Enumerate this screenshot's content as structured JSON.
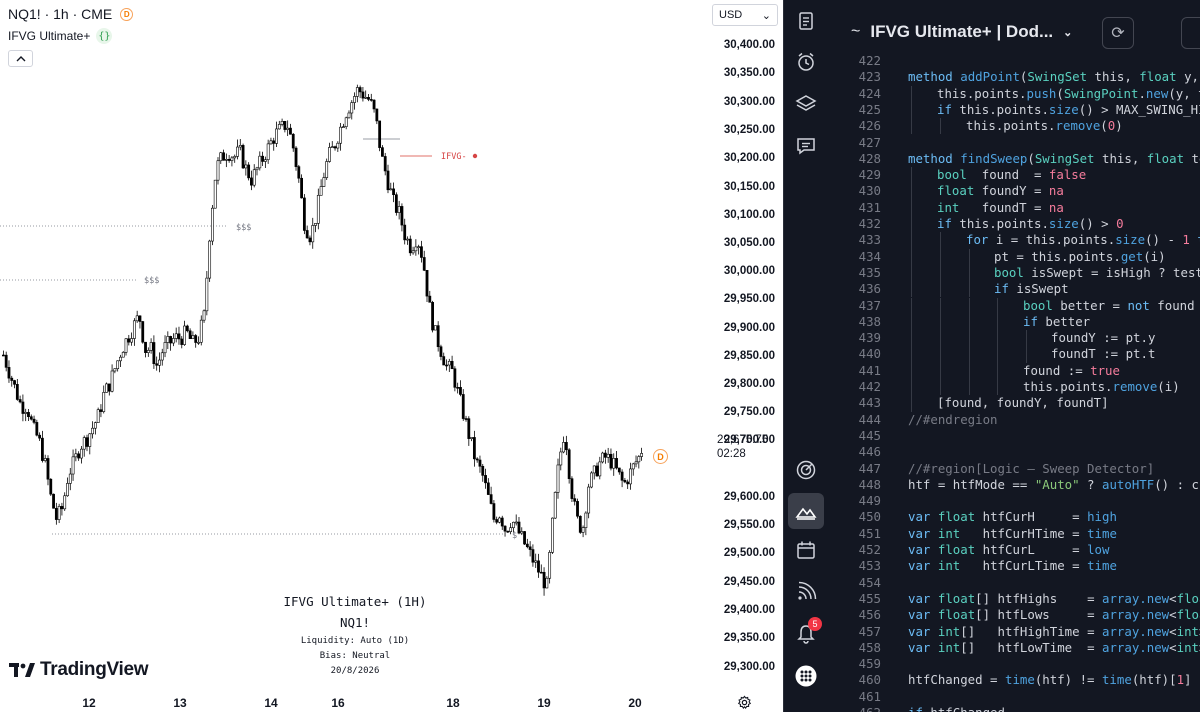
{
  "chart": {
    "symbol": "NQ1! · 1h · CME",
    "symbol_badge": "D",
    "indicator": "IFVG Ultimate+",
    "indicator_icon": "{}",
    "collapse_icon": "chevron-up-icon",
    "currency": "USD",
    "currency_chevron": "⌄",
    "last_price": "29,675.75",
    "countdown": "02:28",
    "d_marker": "D",
    "ifvg_label": "IFVG-",
    "liquidity_labels": [
      "$$$",
      "$$$",
      "$"
    ],
    "info": {
      "title": "IFVG Ultimate+ (1H)",
      "symbol": "NQ1!",
      "liquidity": "Liquidity: Auto (1D)",
      "bias": "Bias: Neutral",
      "date": "20/8/2026"
    },
    "logo_text": "TradingView",
    "bg_color": "#ffffff",
    "candle_color": "#000000"
  },
  "chart_data": {
    "type": "candlestick",
    "y_ticks": [
      "30,400.00",
      "30,350.00",
      "30,300.00",
      "30,250.00",
      "30,200.00",
      "30,150.00",
      "30,100.00",
      "30,050.00",
      "30,000.00",
      "29,950.00",
      "29,900.00",
      "29,850.00",
      "29,800.00",
      "29,750.00",
      "29,700.00",
      "29,600.00",
      "29,550.00",
      "29,500.00",
      "29,450.00",
      "29,400.00",
      "29,350.00",
      "29,300.00"
    ],
    "x_ticks": [
      "12",
      "13",
      "14",
      "16",
      "18",
      "19",
      "20"
    ],
    "ylim": [
      29280,
      30420
    ],
    "close_path": [
      29850,
      29820,
      29790,
      29760,
      29760,
      29720,
      29700,
      29660,
      29600,
      29560,
      29580,
      29640,
      29660,
      29690,
      29700,
      29720,
      29740,
      29780,
      29800,
      29830,
      29860,
      29880,
      29900,
      29920,
      29860,
      29860,
      29830,
      29860,
      29870,
      29880,
      29880,
      29890,
      29870,
      29880,
      29920,
      30080,
      30180,
      30200,
      30210,
      30200,
      30210,
      30180,
      30160,
      30180,
      30200,
      30220,
      30240,
      30250,
      30260,
      30220,
      30160,
      30080,
      30060,
      30100,
      30160,
      30200,
      30220,
      30250,
      30280,
      30300,
      30320,
      30310,
      30300,
      30270,
      30200,
      30160,
      30120,
      30100,
      30060,
      30040,
      30060,
      30020,
      29940,
      29890,
      29860,
      29830,
      29820,
      29780,
      29740,
      29700,
      29660,
      29640,
      29600,
      29560,
      29570,
      29540,
      29560,
      29540,
      29520,
      29500,
      29480,
      29460,
      29440,
      29560,
      29660,
      29720,
      29620,
      29560,
      29540,
      29620,
      29640,
      29660,
      29670,
      29660,
      29640,
      29620,
      29640,
      29660,
      29676
    ]
  },
  "sidebar": {
    "items": [
      {
        "icon": "notes-icon"
      },
      {
        "icon": "alarm-clock-icon"
      },
      {
        "icon": "layers-icon"
      },
      {
        "icon": "chat-icon"
      },
      {
        "icon": "target-icon"
      },
      {
        "icon": "pine-editor-icon"
      },
      {
        "icon": "calendar-icon"
      },
      {
        "icon": "broadcast-icon"
      },
      {
        "icon": "bell-icon",
        "badge": "5"
      },
      {
        "icon": "apps-grid-icon"
      }
    ]
  },
  "editor": {
    "title": "IFVG Ultimate+ | Dod...",
    "squiggle": "~",
    "chevron": "⌄",
    "refresh_icon": "⟳",
    "lines": [
      {
        "n": "422",
        "i": 0,
        "h": ""
      },
      {
        "n": "423",
        "i": 0,
        "h": "<span class=\"k\">method</span> <span class=\"f\">addPoint</span>(<span class=\"t\">SwingSet</span> this, <span class=\"t\">float</span> y, i"
      },
      {
        "n": "424",
        "i": 1,
        "h": "this.points.<span class=\"f\">push</span>(<span class=\"t\">SwingPoint</span>.<span class=\"f\">new</span>(y, t)"
      },
      {
        "n": "425",
        "i": 1,
        "h": "<span class=\"k\">if</span> this.points.<span class=\"f\">size</span>() > MAX_SWING_HIS"
      },
      {
        "n": "426",
        "i": 2,
        "h": "this.points.<span class=\"f\">remove</span>(<span class=\"n\">0</span>)"
      },
      {
        "n": "427",
        "i": 0,
        "h": ""
      },
      {
        "n": "428",
        "i": 0,
        "h": "<span class=\"k\">method</span> <span class=\"f\">findSweep</span>(<span class=\"t\">SwingSet</span> this, <span class=\"t\">float</span> tes"
      },
      {
        "n": "429",
        "i": 1,
        "h": "<span class=\"t\">bool</span>  found  = <span class=\"bool\">false</span>"
      },
      {
        "n": "430",
        "i": 1,
        "h": "<span class=\"t\">float</span> foundY = <span class=\"bool\">na</span>"
      },
      {
        "n": "431",
        "i": 1,
        "h": "<span class=\"t\">int</span>   foundT = <span class=\"bool\">na</span>"
      },
      {
        "n": "432",
        "i": 1,
        "h": "<span class=\"k\">if</span> this.points.<span class=\"f\">size</span>() > <span class=\"n\">0</span>"
      },
      {
        "n": "433",
        "i": 2,
        "h": "<span class=\"k\">for</span> i = this.points.<span class=\"f\">size</span>() - <span class=\"n\">1</span> <span class=\"k\">to</span>"
      },
      {
        "n": "434",
        "i": 3,
        "h": "pt = this.points.<span class=\"f\">get</span>(i)"
      },
      {
        "n": "435",
        "i": 3,
        "h": "<span class=\"t\">bool</span> isSwept = isHigh ? testF"
      },
      {
        "n": "436",
        "i": 3,
        "h": "<span class=\"k\">if</span> isSwept"
      },
      {
        "n": "437",
        "i": 4,
        "h": "<span class=\"t\">bool</span> better = <span class=\"k\">not</span> found o"
      },
      {
        "n": "438",
        "i": 4,
        "h": "<span class=\"k\">if</span> better"
      },
      {
        "n": "439",
        "i": 5,
        "h": "foundY := pt.y"
      },
      {
        "n": "440",
        "i": 5,
        "h": "foundT := pt.t"
      },
      {
        "n": "441",
        "i": 4,
        "h": "found := <span class=\"bool\">true</span>"
      },
      {
        "n": "442",
        "i": 4,
        "h": "this.points.<span class=\"f\">remove</span>(i)"
      },
      {
        "n": "443",
        "i": 1,
        "h": "[found, foundY, foundT]"
      },
      {
        "n": "444",
        "i": 0,
        "h": "<span class=\"c\">//#endregion</span>"
      },
      {
        "n": "445",
        "i": 0,
        "h": ""
      },
      {
        "n": "446",
        "i": 0,
        "h": ""
      },
      {
        "n": "447",
        "i": 0,
        "h": "<span class=\"c\">//#region[Logic — Sweep Detector]</span>"
      },
      {
        "n": "448",
        "i": 0,
        "h": "htf = htfMode == <span class=\"s\">\"Auto\"</span> ? <span class=\"f\">autoHTF</span>() : cus"
      },
      {
        "n": "449",
        "i": 0,
        "h": ""
      },
      {
        "n": "450",
        "i": 0,
        "h": "<span class=\"k\">var</span> <span class=\"t\">float</span> htfCurH     = <span class=\"f\">high</span>"
      },
      {
        "n": "451",
        "i": 0,
        "h": "<span class=\"k\">var</span> <span class=\"t\">int</span>   htfCurHTime = <span class=\"f\">time</span>"
      },
      {
        "n": "452",
        "i": 0,
        "h": "<span class=\"k\">var</span> <span class=\"t\">float</span> htfCurL     = <span class=\"f\">low</span>"
      },
      {
        "n": "453",
        "i": 0,
        "h": "<span class=\"k\">var</span> <span class=\"t\">int</span>   htfCurLTime = <span class=\"f\">time</span>"
      },
      {
        "n": "454",
        "i": 0,
        "h": ""
      },
      {
        "n": "455",
        "i": 0,
        "h": "<span class=\"k\">var</span> <span class=\"t\">float</span>[] htfHighs    = <span class=\"f\">array.new</span>&lt;<span class=\"t\">float</span>"
      },
      {
        "n": "456",
        "i": 0,
        "h": "<span class=\"k\">var</span> <span class=\"t\">float</span>[] htfLows     = <span class=\"f\">array.new</span>&lt;<span class=\"t\">float</span>"
      },
      {
        "n": "457",
        "i": 0,
        "h": "<span class=\"k\">var</span> <span class=\"t\">int</span>[]   htfHighTime = <span class=\"f\">array.new</span>&lt;<span class=\"t\">int</span>&gt;("
      },
      {
        "n": "458",
        "i": 0,
        "h": "<span class=\"k\">var</span> <span class=\"t\">int</span>[]   htfLowTime  = <span class=\"f\">array.new</span>&lt;<span class=\"t\">int</span>&gt;("
      },
      {
        "n": "459",
        "i": 0,
        "h": ""
      },
      {
        "n": "460",
        "i": 0,
        "h": "htfChanged = <span class=\"f\">time</span>(htf) != <span class=\"f\">time</span>(htf)[<span class=\"n\">1</span>]"
      },
      {
        "n": "461",
        "i": 0,
        "h": ""
      },
      {
        "n": "462",
        "i": 0,
        "h": "<span class=\"k\">if</span> htfChanged"
      }
    ]
  }
}
